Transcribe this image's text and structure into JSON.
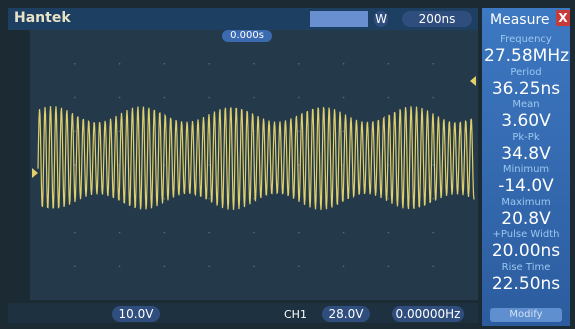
{
  "header": {
    "brand": "Hantek",
    "timebase": "200ns",
    "window_label": "W",
    "trigger_time": "0.000s"
  },
  "measure": {
    "title": "Measure",
    "close": "X",
    "items": [
      {
        "label": "Frequency",
        "value": "27.58MHz"
      },
      {
        "label": "Period",
        "value": "36.25ns"
      },
      {
        "label": "Mean",
        "value": "3.60V"
      },
      {
        "label": "Pk-Pk",
        "value": "34.8V"
      },
      {
        "label": "Minimum",
        "value": "-14.0V"
      },
      {
        "label": "Maximum",
        "value": "20.8V"
      },
      {
        "label": "+Pulse Width",
        "value": "20.00ns"
      },
      {
        "label": "Rise Time",
        "value": "22.50ns"
      }
    ],
    "button": "Modify"
  },
  "footer": {
    "ch_scale": "10.0V",
    "channel": "CH1",
    "trigger_level": "28.0V",
    "frequency": "0.00000Hz"
  }
}
